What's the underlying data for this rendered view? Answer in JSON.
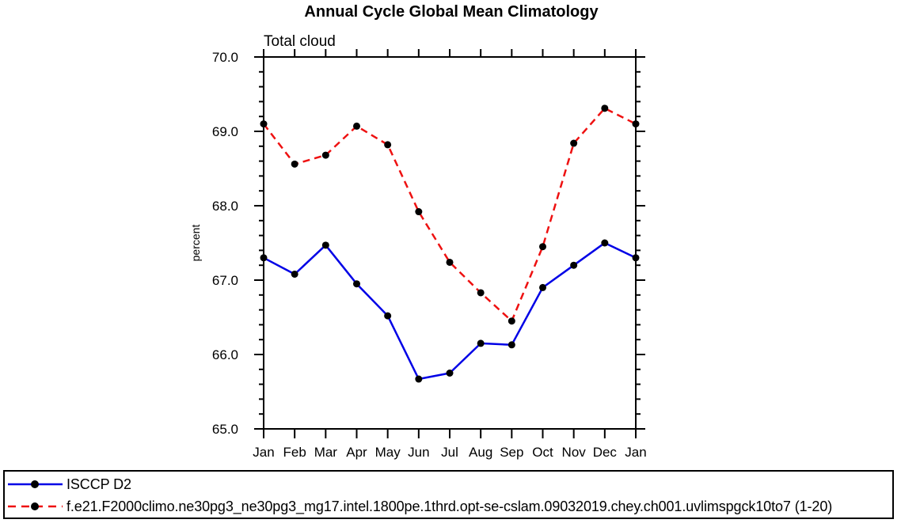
{
  "title": "Annual Cycle Global Mean Climatology",
  "chart_data": {
    "type": "line",
    "title": "Annual Cycle Global Mean Climatology",
    "subtitle": "Total cloud",
    "xlabel": "",
    "ylabel": "percent",
    "categories": [
      "Jan",
      "Feb",
      "Mar",
      "Apr",
      "May",
      "Jun",
      "Jul",
      "Aug",
      "Sep",
      "Oct",
      "Nov",
      "Dec",
      "Jan"
    ],
    "ylim": [
      65.0,
      70.0
    ],
    "y_major_tick_step": 1.0,
    "y_minor_tick_step": 0.2,
    "grid": false,
    "legend_position": "bottom-left-box",
    "series": [
      {
        "name": "ISCCP D2",
        "color": "#0000e6",
        "line_style": "solid",
        "marker": "filled-black-circle",
        "values": [
          67.3,
          67.08,
          67.47,
          66.95,
          66.52,
          65.67,
          65.75,
          66.15,
          66.13,
          66.9,
          67.2,
          67.5,
          67.3
        ]
      },
      {
        "name": "f.e21.F2000climo.ne30pg3_ne30pg3_mg17.intel.1800pe.1thrd.opt-se-cslam.09032019.chey.ch001.uvlimspgck10to7 (1-20)",
        "color": "#ee1111",
        "line_style": "dashed",
        "marker": "filled-black-circle",
        "values": [
          69.1,
          68.56,
          68.68,
          69.07,
          68.82,
          67.92,
          67.24,
          66.83,
          66.45,
          67.45,
          68.84,
          69.31,
          69.1
        ]
      }
    ]
  },
  "colors": {
    "axis": "#000000",
    "marker": "#000000",
    "background": "#ffffff",
    "series_observed": "#0000e6",
    "series_model": "#ee1111"
  }
}
